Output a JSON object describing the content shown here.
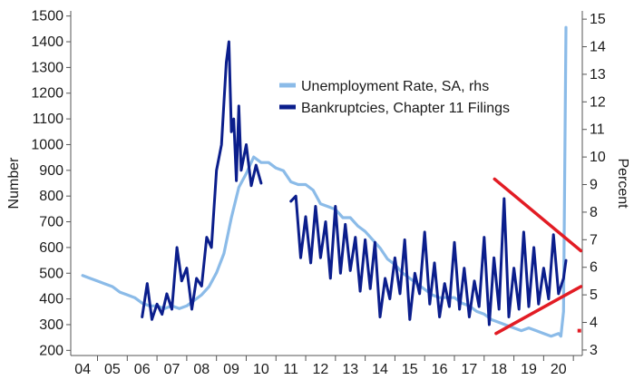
{
  "chart_data": {
    "type": "line",
    "title": "",
    "ylabel_left": "Number",
    "ylabel_right": "Percent",
    "ylim_left": [
      180,
      1520
    ],
    "ylim_right": [
      2.8,
      15.3
    ],
    "left_ticks": [
      200,
      300,
      400,
      500,
      600,
      700,
      800,
      900,
      1000,
      1100,
      1200,
      1300,
      1400,
      1500
    ],
    "right_ticks": [
      3,
      4,
      5,
      6,
      7,
      8,
      9,
      10,
      11,
      12,
      13,
      14,
      15
    ],
    "x_tick_labels": [
      "04",
      "05",
      "06",
      "07",
      "08",
      "09",
      "10",
      "11",
      "12",
      "13",
      "14",
      "15",
      "16",
      "17",
      "18",
      "19",
      "20"
    ],
    "x_tick_positions": [
      2004,
      2005,
      2006,
      2007,
      2008,
      2009,
      2010,
      2011,
      2012,
      2013,
      2014,
      2015,
      2016,
      2017,
      2018,
      2019,
      2020
    ],
    "xlim": [
      2003.6,
      2020.8
    ],
    "legend_position": "top-center",
    "grid": false,
    "series": [
      {
        "name": "Unemployment Rate, SA, rhs",
        "axis": "right",
        "color": "#8bbbe8",
        "x": [
          2004.0,
          2004.25,
          2004.5,
          2004.75,
          2005.0,
          2005.25,
          2005.5,
          2005.75,
          2006.0,
          2006.25,
          2006.5,
          2006.75,
          2007.0,
          2007.25,
          2007.5,
          2007.75,
          2008.0,
          2008.25,
          2008.5,
          2008.75,
          2009.0,
          2009.25,
          2009.5,
          2009.75,
          2010.0,
          2010.25,
          2010.5,
          2010.75,
          2011.0,
          2011.25,
          2011.5,
          2011.75,
          2012.0,
          2012.25,
          2012.5,
          2012.75,
          2013.0,
          2013.25,
          2013.5,
          2013.75,
          2014.0,
          2014.25,
          2014.5,
          2014.75,
          2015.0,
          2015.25,
          2015.5,
          2015.75,
          2016.0,
          2016.25,
          2016.5,
          2016.75,
          2017.0,
          2017.25,
          2017.5,
          2017.75,
          2018.0,
          2018.25,
          2018.5,
          2018.75,
          2019.0,
          2019.25,
          2019.5,
          2019.75,
          2020.0,
          2020.08,
          2020.17,
          2020.25
        ],
        "values": [
          5.7,
          5.6,
          5.5,
          5.4,
          5.3,
          5.1,
          5.0,
          4.9,
          4.7,
          4.6,
          4.6,
          4.5,
          4.6,
          4.5,
          4.6,
          4.8,
          5.0,
          5.3,
          5.8,
          6.5,
          7.8,
          8.9,
          9.4,
          10.0,
          9.8,
          9.8,
          9.6,
          9.5,
          9.1,
          9.0,
          9.0,
          8.8,
          8.3,
          8.2,
          8.1,
          7.8,
          7.8,
          7.5,
          7.3,
          7.0,
          6.7,
          6.3,
          6.1,
          5.8,
          5.6,
          5.4,
          5.2,
          5.0,
          4.9,
          4.9,
          4.9,
          4.7,
          4.6,
          4.4,
          4.3,
          4.1,
          4.0,
          3.9,
          3.8,
          3.7,
          3.8,
          3.7,
          3.6,
          3.5,
          3.6,
          3.5,
          4.4,
          14.7
        ]
      },
      {
        "name": "Bankruptcies, Chapter 11 Filings",
        "axis": "left",
        "color": "#0b1e8c",
        "segments": [
          {
            "x": [
              2006.0,
              2006.17,
              2006.33,
              2006.5,
              2006.67,
              2006.83,
              2007.0,
              2007.17,
              2007.33,
              2007.5,
              2007.67,
              2007.83,
              2008.0,
              2008.17,
              2008.33,
              2008.5,
              2008.67,
              2008.83,
              2008.92,
              2009.0,
              2009.08,
              2009.17,
              2009.25,
              2009.33,
              2009.5,
              2009.67,
              2009.83,
              2010.0
            ],
            "values": [
              330,
              460,
              320,
              380,
              340,
              420,
              360,
              600,
              470,
              520,
              360,
              480,
              450,
              640,
              600,
              900,
              1000,
              1320,
              1400,
              1050,
              1100,
              860,
              1150,
              900,
              1000,
              840,
              920,
              850
            ]
          },
          {
            "x": [
              2011.0,
              2011.17,
              2011.33,
              2011.5,
              2011.67,
              2011.83,
              2012.0,
              2012.17,
              2012.33,
              2012.5,
              2012.67,
              2012.83,
              2013.0,
              2013.17,
              2013.33,
              2013.5,
              2013.67,
              2013.83,
              2014.0,
              2014.17,
              2014.33,
              2014.5,
              2014.67,
              2014.83,
              2015.0,
              2015.17,
              2015.33,
              2015.5,
              2015.67,
              2015.83,
              2016.0,
              2016.17,
              2016.33,
              2016.5,
              2016.67,
              2016.83,
              2017.0,
              2017.17,
              2017.33,
              2017.5,
              2017.67,
              2017.83,
              2018.0,
              2018.17,
              2018.33,
              2018.5,
              2018.67,
              2018.83,
              2019.0,
              2019.17,
              2019.33,
              2019.5,
              2019.67,
              2019.83,
              2020.0,
              2020.17,
              2020.25
            ],
            "values": [
              780,
              800,
              560,
              720,
              540,
              760,
              560,
              700,
              480,
              760,
              500,
              690,
              510,
              640,
              430,
              630,
              440,
              620,
              330,
              480,
              400,
              560,
              420,
              630,
              320,
              500,
              420,
              660,
              380,
              540,
              330,
              460,
              370,
              620,
              360,
              520,
              330,
              470,
              370,
              640,
              300,
              560,
              360,
              790,
              330,
              520,
              360,
              660,
              370,
              600,
              380,
              520,
              400,
              650,
              420,
              480,
              550
            ]
          }
        ]
      }
    ],
    "annotations": [
      {
        "type": "trend-line",
        "color": "#e21c24",
        "x": [
          2017.85,
          2020.75
        ],
        "right_axis_values": [
          9.2,
          6.6
        ]
      },
      {
        "type": "trend-line",
        "color": "#e21c24",
        "x": [
          2017.9,
          2020.75
        ],
        "right_axis_values": [
          3.6,
          5.3
        ]
      },
      {
        "type": "marker",
        "color": "#e21c24",
        "x": 2020.7,
        "right_axis_value": 3.7
      }
    ]
  }
}
